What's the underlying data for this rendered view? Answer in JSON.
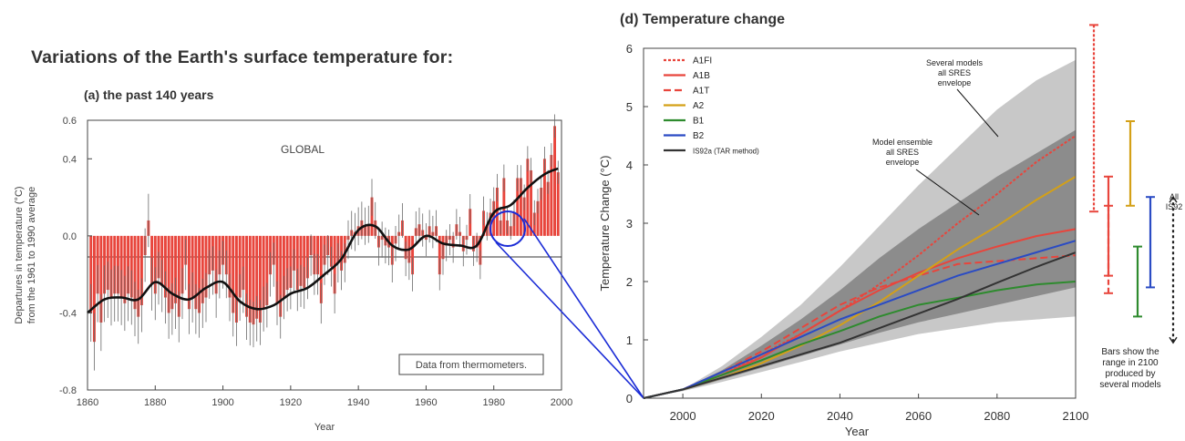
{
  "page": {
    "title": "Variations of the Earth's surface temperature for:"
  },
  "colors": {
    "bar_red": "#e8453c",
    "ink": "#222222",
    "connector_blue": "#1a2bd6",
    "envelope_light": "#c8c8c8",
    "envelope_dark": "#8c8c8c"
  },
  "chart_data": [
    {
      "type": "bar",
      "panel": "(a)",
      "title": "(a) the past 140 years",
      "xlabel": "Year",
      "ylabel_line1": "Departures in temperature (°C)",
      "ylabel_line2": "from the 1961 to 1990 average",
      "xlim": [
        1860,
        2000
      ],
      "ylim": [
        -0.8,
        0.6
      ],
      "xticks": [
        "1860",
        "1880",
        "1900",
        "1920",
        "1940",
        "1960",
        "1980",
        "2000"
      ],
      "yticks": [
        "-0.8",
        "-0.4",
        "0.0",
        "0.4",
        "0.6"
      ],
      "region_label": "GLOBAL",
      "source_note": "Data from thermometers.",
      "grid": false,
      "annual_values": [
        {
          "year": 1861,
          "value": -0.4
        },
        {
          "year": 1862,
          "value": -0.55
        },
        {
          "year": 1863,
          "value": -0.3
        },
        {
          "year": 1864,
          "value": -0.45
        },
        {
          "year": 1865,
          "value": -0.3
        },
        {
          "year": 1866,
          "value": -0.28
        },
        {
          "year": 1867,
          "value": -0.32
        },
        {
          "year": 1868,
          "value": -0.3
        },
        {
          "year": 1869,
          "value": -0.3
        },
        {
          "year": 1870,
          "value": -0.32
        },
        {
          "year": 1871,
          "value": -0.35
        },
        {
          "year": 1872,
          "value": -0.3
        },
        {
          "year": 1873,
          "value": -0.32
        },
        {
          "year": 1874,
          "value": -0.38
        },
        {
          "year": 1875,
          "value": -0.42
        },
        {
          "year": 1876,
          "value": -0.36
        },
        {
          "year": 1877,
          "value": -0.1
        },
        {
          "year": 1878,
          "value": 0.08
        },
        {
          "year": 1879,
          "value": -0.25
        },
        {
          "year": 1880,
          "value": -0.3
        },
        {
          "year": 1881,
          "value": -0.22
        },
        {
          "year": 1882,
          "value": -0.26
        },
        {
          "year": 1883,
          "value": -0.32
        },
        {
          "year": 1884,
          "value": -0.4
        },
        {
          "year": 1885,
          "value": -0.38
        },
        {
          "year": 1886,
          "value": -0.35
        },
        {
          "year": 1887,
          "value": -0.42
        },
        {
          "year": 1888,
          "value": -0.3
        },
        {
          "year": 1889,
          "value": -0.15
        },
        {
          "year": 1890,
          "value": -0.38
        },
        {
          "year": 1891,
          "value": -0.32
        },
        {
          "year": 1892,
          "value": -0.38
        },
        {
          "year": 1893,
          "value": -0.4
        },
        {
          "year": 1894,
          "value": -0.35
        },
        {
          "year": 1895,
          "value": -0.32
        },
        {
          "year": 1896,
          "value": -0.2
        },
        {
          "year": 1897,
          "value": -0.18
        },
        {
          "year": 1898,
          "value": -0.3
        },
        {
          "year": 1899,
          "value": -0.2
        },
        {
          "year": 1900,
          "value": -0.15
        },
        {
          "year": 1901,
          "value": -0.2
        },
        {
          "year": 1902,
          "value": -0.32
        },
        {
          "year": 1903,
          "value": -0.4
        },
        {
          "year": 1904,
          "value": -0.45
        },
        {
          "year": 1905,
          "value": -0.32
        },
        {
          "year": 1906,
          "value": -0.28
        },
        {
          "year": 1907,
          "value": -0.42
        },
        {
          "year": 1908,
          "value": -0.45
        },
        {
          "year": 1909,
          "value": -0.46
        },
        {
          "year": 1910,
          "value": -0.43
        },
        {
          "year": 1911,
          "value": -0.45
        },
        {
          "year": 1912,
          "value": -0.38
        },
        {
          "year": 1913,
          "value": -0.36
        },
        {
          "year": 1914,
          "value": -0.2
        },
        {
          "year": 1915,
          "value": -0.15
        },
        {
          "year": 1916,
          "value": -0.35
        },
        {
          "year": 1917,
          "value": -0.42
        },
        {
          "year": 1918,
          "value": -0.32
        },
        {
          "year": 1919,
          "value": -0.28
        },
        {
          "year": 1920,
          "value": -0.27
        },
        {
          "year": 1921,
          "value": -0.18
        },
        {
          "year": 1922,
          "value": -0.28
        },
        {
          "year": 1923,
          "value": -0.26
        },
        {
          "year": 1924,
          "value": -0.27
        },
        {
          "year": 1925,
          "value": -0.22
        },
        {
          "year": 1926,
          "value": -0.1
        },
        {
          "year": 1927,
          "value": -0.2
        },
        {
          "year": 1928,
          "value": -0.2
        },
        {
          "year": 1929,
          "value": -0.35
        },
        {
          "year": 1930,
          "value": -0.15
        },
        {
          "year": 1931,
          "value": -0.1
        },
        {
          "year": 1932,
          "value": -0.16
        },
        {
          "year": 1933,
          "value": -0.3
        },
        {
          "year": 1934,
          "value": -0.14
        },
        {
          "year": 1935,
          "value": -0.18
        },
        {
          "year": 1936,
          "value": -0.14
        },
        {
          "year": 1937,
          "value": -0.02
        },
        {
          "year": 1938,
          "value": 0.03
        },
        {
          "year": 1939,
          "value": 0.02
        },
        {
          "year": 1940,
          "value": 0.05
        },
        {
          "year": 1941,
          "value": 0.08
        },
        {
          "year": 1942,
          "value": 0.05
        },
        {
          "year": 1943,
          "value": 0.06
        },
        {
          "year": 1944,
          "value": 0.2
        },
        {
          "year": 1945,
          "value": 0.08
        },
        {
          "year": 1946,
          "value": -0.06
        },
        {
          "year": 1947,
          "value": -0.02
        },
        {
          "year": 1948,
          "value": -0.05
        },
        {
          "year": 1949,
          "value": -0.06
        },
        {
          "year": 1950,
          "value": -0.15
        },
        {
          "year": 1951,
          "value": -0.04
        },
        {
          "year": 1952,
          "value": 0.02
        },
        {
          "year": 1953,
          "value": 0.08
        },
        {
          "year": 1954,
          "value": -0.12
        },
        {
          "year": 1955,
          "value": -0.14
        },
        {
          "year": 1956,
          "value": -0.2
        },
        {
          "year": 1957,
          "value": 0.04
        },
        {
          "year": 1958,
          "value": 0.06
        },
        {
          "year": 1959,
          "value": 0.03
        },
        {
          "year": 1960,
          "value": -0.02
        },
        {
          "year": 1961,
          "value": 0.05
        },
        {
          "year": 1962,
          "value": 0.02
        },
        {
          "year": 1963,
          "value": 0.05
        },
        {
          "year": 1964,
          "value": -0.2
        },
        {
          "year": 1965,
          "value": -0.12
        },
        {
          "year": 1966,
          "value": -0.05
        },
        {
          "year": 1967,
          "value": -0.02
        },
        {
          "year": 1968,
          "value": -0.06
        },
        {
          "year": 1969,
          "value": 0.06
        },
        {
          "year": 1970,
          "value": 0.02
        },
        {
          "year": 1971,
          "value": -0.08
        },
        {
          "year": 1972,
          "value": -0.02
        },
        {
          "year": 1973,
          "value": 0.14
        },
        {
          "year": 1974,
          "value": -0.08
        },
        {
          "year": 1975,
          "value": -0.06
        },
        {
          "year": 1976,
          "value": -0.15
        },
        {
          "year": 1977,
          "value": 0.13
        },
        {
          "year": 1978,
          "value": 0.05
        },
        {
          "year": 1979,
          "value": 0.12
        },
        {
          "year": 1980,
          "value": 0.18
        },
        {
          "year": 1981,
          "value": 0.25
        },
        {
          "year": 1982,
          "value": 0.08
        },
        {
          "year": 1983,
          "value": 0.3
        },
        {
          "year": 1984,
          "value": 0.08
        },
        {
          "year": 1985,
          "value": 0.05
        },
        {
          "year": 1986,
          "value": 0.12
        },
        {
          "year": 1987,
          "value": 0.3
        },
        {
          "year": 1988,
          "value": 0.3
        },
        {
          "year": 1989,
          "value": 0.2
        },
        {
          "year": 1990,
          "value": 0.4
        },
        {
          "year": 1991,
          "value": 0.34
        },
        {
          "year": 1992,
          "value": 0.12
        },
        {
          "year": 1993,
          "value": 0.18
        },
        {
          "year": 1994,
          "value": 0.25
        },
        {
          "year": 1995,
          "value": 0.4
        },
        {
          "year": 1996,
          "value": 0.28
        },
        {
          "year": 1997,
          "value": 0.42
        },
        {
          "year": 1998,
          "value": 0.57
        },
        {
          "year": 1999,
          "value": 0.33
        }
      ],
      "error_bar_halfwidth_1860": 0.15,
      "error_bar_halfwidth_1999": 0.06,
      "smoothed_series": {
        "x": [
          1860,
          1865,
          1870,
          1875,
          1880,
          1885,
          1890,
          1895,
          1900,
          1905,
          1910,
          1915,
          1920,
          1925,
          1930,
          1935,
          1940,
          1945,
          1950,
          1955,
          1960,
          1965,
          1970,
          1975,
          1980,
          1985,
          1990,
          1995,
          1999
        ],
        "y": [
          -0.4,
          -0.33,
          -0.32,
          -0.33,
          -0.24,
          -0.3,
          -0.33,
          -0.27,
          -0.24,
          -0.34,
          -0.38,
          -0.36,
          -0.3,
          -0.27,
          -0.2,
          -0.12,
          0.03,
          0.05,
          -0.05,
          -0.07,
          0.0,
          -0.04,
          -0.05,
          -0.05,
          0.12,
          0.16,
          0.25,
          0.32,
          0.35
        ]
      }
    },
    {
      "type": "line",
      "panel": "(d)",
      "title": "(d) Temperature change",
      "xlabel": "Year",
      "ylabel": "Temperature Change (°C)",
      "xlim": [
        1990,
        2100
      ],
      "ylim": [
        0,
        6
      ],
      "xticks": [
        "2000",
        "2020",
        "2040",
        "2060",
        "2080",
        "2100"
      ],
      "yticks": [
        "0",
        "1",
        "2",
        "3",
        "4",
        "5",
        "6"
      ],
      "grid": false,
      "legend_position": "top-left",
      "x": [
        1990,
        2000,
        2010,
        2020,
        2030,
        2040,
        2050,
        2060,
        2070,
        2080,
        2090,
        2100
      ],
      "series": [
        {
          "name": "A1FI",
          "color": "#e8453c",
          "dash": "3,2",
          "values": [
            0,
            0.15,
            0.4,
            0.75,
            1.1,
            1.5,
            1.95,
            2.45,
            3.0,
            3.5,
            4.05,
            4.5
          ]
        },
        {
          "name": "A1B",
          "color": "#e8453c",
          "dash": "",
          "values": [
            0,
            0.15,
            0.4,
            0.7,
            1.1,
            1.5,
            1.85,
            2.15,
            2.4,
            2.6,
            2.78,
            2.9
          ]
        },
        {
          "name": "A1T",
          "color": "#e8453c",
          "dash": "8,4",
          "values": [
            0,
            0.15,
            0.45,
            0.8,
            1.2,
            1.6,
            1.9,
            2.1,
            2.3,
            2.35,
            2.4,
            2.45
          ]
        },
        {
          "name": "A2",
          "color": "#d4a017",
          "dash": "",
          "values": [
            0,
            0.15,
            0.35,
            0.6,
            0.9,
            1.25,
            1.65,
            2.1,
            2.55,
            2.95,
            3.4,
            3.8
          ]
        },
        {
          "name": "B1",
          "color": "#2e8b2e",
          "dash": "",
          "values": [
            0,
            0.15,
            0.4,
            0.65,
            0.92,
            1.15,
            1.4,
            1.6,
            1.72,
            1.85,
            1.95,
            2.0
          ]
        },
        {
          "name": "B2",
          "color": "#2a4bc4",
          "dash": "",
          "values": [
            0,
            0.15,
            0.45,
            0.75,
            1.05,
            1.35,
            1.6,
            1.85,
            2.1,
            2.3,
            2.5,
            2.7
          ]
        },
        {
          "name": "IS92a (TAR method)",
          "color": "#333333",
          "dash": "",
          "values": [
            0,
            0.15,
            0.35,
            0.55,
            0.75,
            0.95,
            1.2,
            1.45,
            1.7,
            1.98,
            2.25,
            2.5
          ]
        }
      ],
      "envelope_light": {
        "label": "Several models all SRES envelope",
        "upper": [
          0,
          0.15,
          0.55,
          1.05,
          1.6,
          2.25,
          2.95,
          3.65,
          4.3,
          4.95,
          5.45,
          5.8
        ],
        "lower": [
          0,
          0.12,
          0.28,
          0.45,
          0.62,
          0.8,
          0.95,
          1.1,
          1.2,
          1.3,
          1.35,
          1.4
        ]
      },
      "envelope_dark": {
        "label": "Model ensemble all SRES envelope",
        "upper": [
          0,
          0.15,
          0.48,
          0.9,
          1.35,
          1.85,
          2.4,
          2.9,
          3.35,
          3.8,
          4.2,
          4.6
        ],
        "lower": [
          0,
          0.13,
          0.32,
          0.52,
          0.72,
          0.92,
          1.12,
          1.3,
          1.45,
          1.6,
          1.75,
          1.9
        ]
      },
      "range_bars_2100": [
        {
          "name": "A1FI",
          "color": "#e8453c",
          "dash": "3,2",
          "low": 3.2,
          "high": 6.4
        },
        {
          "name": "A1B",
          "color": "#e8453c",
          "dash": "",
          "low": 2.1,
          "high": 3.8
        },
        {
          "name": "A1T",
          "color": "#e8453c",
          "dash": "6,3",
          "low": 1.8,
          "high": 3.3
        },
        {
          "name": "A2",
          "color": "#d4a017",
          "dash": "",
          "low": 3.3,
          "high": 4.75
        },
        {
          "name": "B1",
          "color": "#2e8b2e",
          "dash": "",
          "low": 1.4,
          "high": 2.6
        },
        {
          "name": "B2",
          "color": "#2a4bc4",
          "dash": "",
          "low": 1.9,
          "high": 3.45
        },
        {
          "name": "All IS92",
          "color": "#222222",
          "dash": "3,3",
          "low": 0.95,
          "high": 3.45
        }
      ],
      "annotations": {
        "several_models": [
          "Several models",
          "all SRES",
          "envelope"
        ],
        "model_ensemble": [
          "Model ensemble",
          "all SRES",
          "envelope"
        ],
        "all_is92": [
          "All",
          "IS92"
        ],
        "bars_note": [
          "Bars show the",
          "range in 2100",
          "produced by",
          "several models"
        ]
      }
    }
  ]
}
